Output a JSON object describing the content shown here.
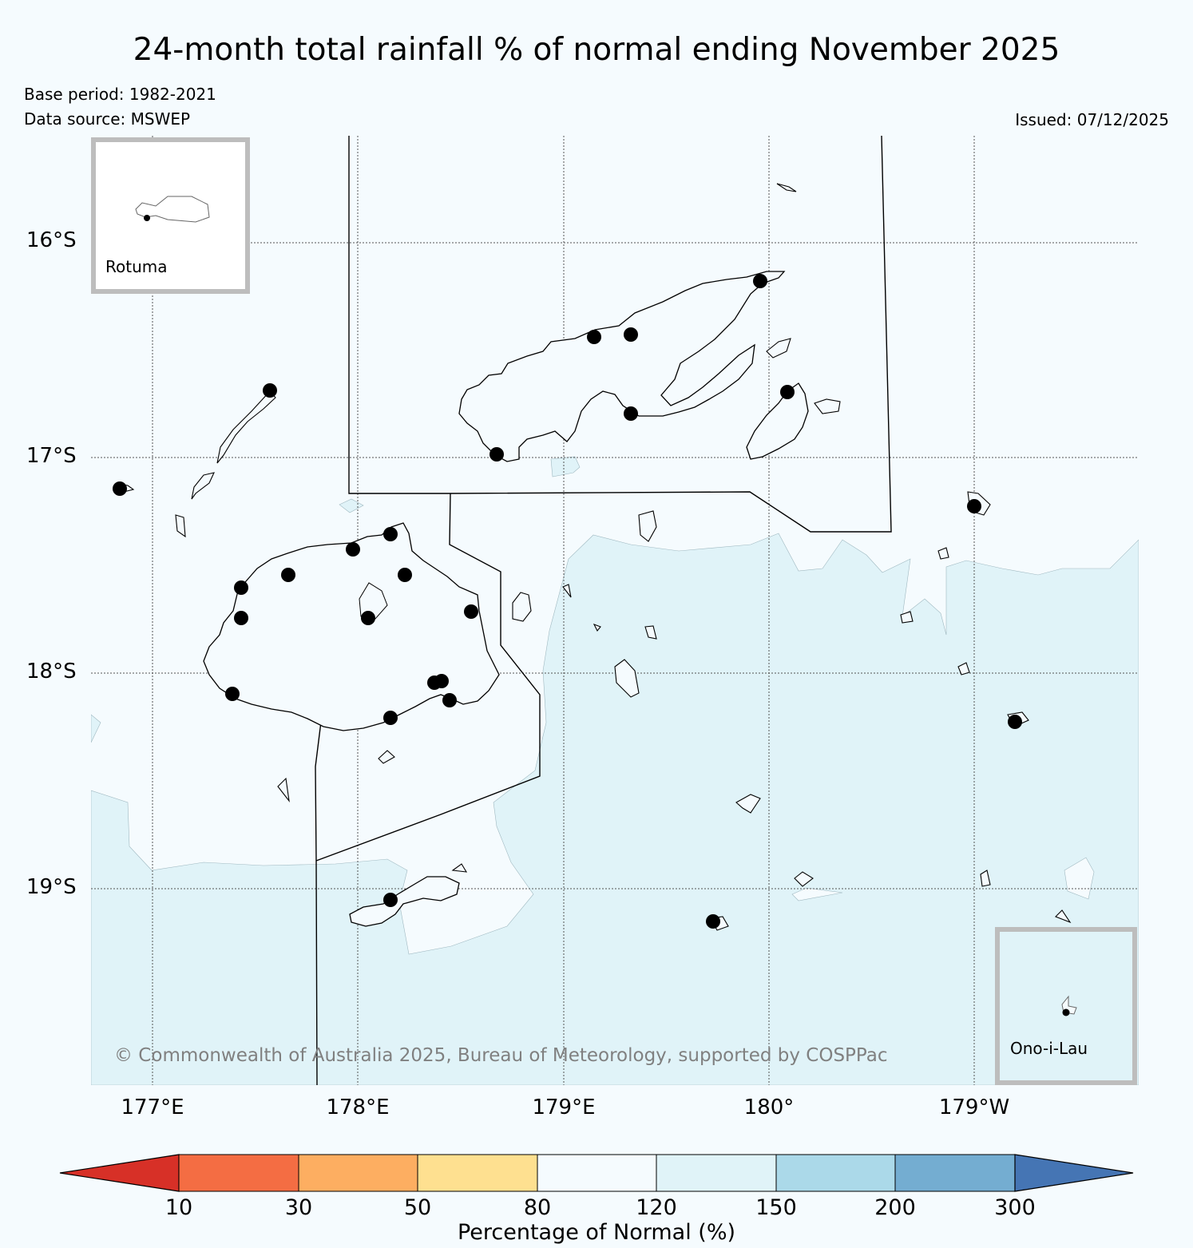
{
  "title": "24-month total rainfall % of normal ending November 2025",
  "base_period": "Base period: 1982-2021",
  "data_source": "Data source: MSWEP",
  "issued": "Issued: 07/12/2025",
  "lat_labels": [
    "16°S",
    "17°S",
    "18°S",
    "19°S"
  ],
  "lon_labels": [
    "177°E",
    "178°E",
    "179°E",
    "180°",
    "179°W"
  ],
  "insets": {
    "rotuma": "Rotuma",
    "ono": "Ono-i-Lau"
  },
  "copyright": "© Commonwealth of Australia 2025, Bureau of Meteorology, supported by COSPPac",
  "colorbar": {
    "label": "Percentage of Normal (%)",
    "ticks": [
      "10",
      "30",
      "50",
      "80",
      "120",
      "150",
      "200",
      "300"
    ],
    "colors": [
      "#d73027",
      "#f46d43",
      "#fdae61",
      "#fee090",
      "#f5fbfe",
      "#e0f3f8",
      "#abd9e9",
      "#74add1",
      "#4575b4"
    ]
  },
  "colors": {
    "background": "#f5fbfe",
    "wet_fill": "#e0f3f8",
    "station": "#000000",
    "inset_border": "#bdbdbd"
  }
}
